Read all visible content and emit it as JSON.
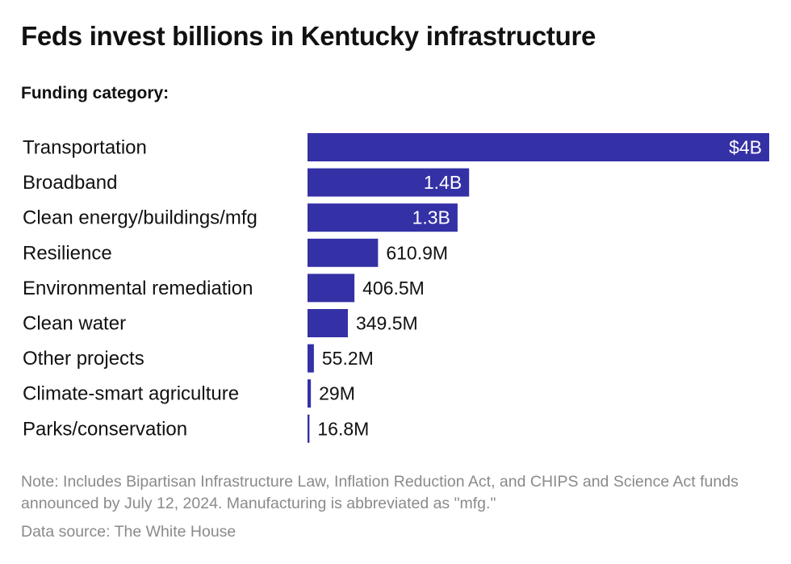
{
  "header": {
    "title": "Feds invest billions in Kentucky infrastructure",
    "subtitle": "Funding category:"
  },
  "colors": {
    "bar": "#3430A6",
    "inside_label": "#ffffff",
    "outside_label": "#111111",
    "footer_text": "#8a8a8a"
  },
  "chart_data": {
    "type": "bar",
    "orientation": "horizontal",
    "categories": [
      "Transportation",
      "Broadband",
      "Clean energy/buildings/mfg",
      "Resilience",
      "Environmental remediation",
      "Clean water",
      "Other projects",
      "Climate-smart agriculture",
      "Parks/conservation"
    ],
    "values": [
      4000,
      1400,
      1300,
      610.9,
      406.5,
      349.5,
      55.2,
      29,
      16.8
    ],
    "value_unit": "millions of dollars",
    "data_labels": [
      "$4B",
      "1.4B",
      "1.3B",
      "610.9M",
      "406.5M",
      "349.5M",
      "55.2M",
      "29M",
      "16.8M"
    ],
    "xlim": [
      0,
      4000
    ],
    "grid": false,
    "legend": "none"
  },
  "footer": {
    "note": "Note: Includes Bipartisan Infrastructure Law, Inflation Reduction Act, and CHIPS and Science Act funds announced by July 12, 2024. Manufacturing is abbreviated as \"mfg.\"",
    "source": "Data source: The White House"
  }
}
